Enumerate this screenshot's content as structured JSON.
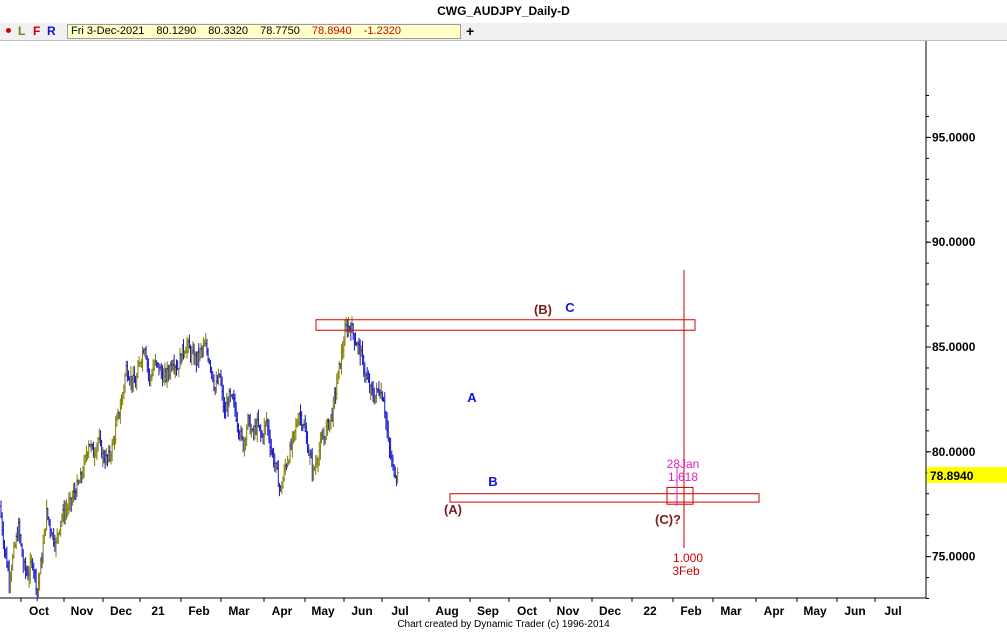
{
  "window": {
    "title": "CWG_AUDJPY_Daily-D"
  },
  "toolbar": {
    "l_label": "L",
    "f_label": "F",
    "r_label": "R",
    "plus_label": "+"
  },
  "quote": {
    "date": "Fri 3-Dec-2021",
    "open": "80.1290",
    "high": "80.3320",
    "low": "78.7750",
    "close": "78.8940",
    "change": "-1.2320"
  },
  "footer": {
    "credit": "Chart created by Dynamic Trader  (c) 1996-2014"
  },
  "colors": {
    "up_bar": "#7d7d00",
    "down_bar": "#1414c8",
    "zone": "#d00000",
    "time_line": "#d00000",
    "wave_major": "#7b1c1c",
    "wave_minor": "#1414dc",
    "fib": "#e020c0",
    "last_price_bg": "#ffff00"
  },
  "chart_data": {
    "type": "ohlc",
    "instrument": "AUDJPY",
    "timeframe": "Daily",
    "ylim": [
      73.0,
      98.0
    ],
    "y_ticks": [
      "95.0000",
      "90.0000",
      "85.0000",
      "80.0000",
      "75.0000"
    ],
    "x_ticks": [
      "Oct",
      "Nov",
      "Dec",
      "21",
      "Feb",
      "Mar",
      "Apr",
      "May",
      "Jun",
      "Jul",
      "Aug",
      "Sep",
      "Oct",
      "Nov",
      "Dec",
      "22",
      "Feb",
      "Mar",
      "Apr",
      "May",
      "Jun",
      "Jul"
    ],
    "last_price": "78.8940",
    "price_path": [
      [
        0,
        77.4
      ],
      [
        1,
        75.4
      ],
      [
        2,
        74.0
      ],
      [
        3,
        75.2
      ],
      [
        4,
        76.4
      ],
      [
        5,
        74.6
      ],
      [
        6,
        74.1
      ],
      [
        7,
        74.8
      ],
      [
        8,
        73.4
      ],
      [
        9,
        75.0
      ],
      [
        10,
        77.1
      ],
      [
        11,
        76.2
      ],
      [
        12,
        75.6
      ],
      [
        13,
        76.8
      ],
      [
        14,
        77.2
      ],
      [
        15,
        77.5
      ],
      [
        16,
        78.1
      ],
      [
        17,
        78.5
      ],
      [
        18,
        79.3
      ],
      [
        19,
        80.5
      ],
      [
        20,
        79.9
      ],
      [
        21,
        80.6
      ],
      [
        22,
        79.8
      ],
      [
        23,
        79.6
      ],
      [
        24,
        80.2
      ],
      [
        25,
        81.4
      ],
      [
        26,
        82.4
      ],
      [
        27,
        84.0
      ],
      [
        28,
        83.5
      ],
      [
        29,
        83.2
      ],
      [
        30,
        84.4
      ],
      [
        31,
        85.1
      ],
      [
        32,
        83.4
      ],
      [
        33,
        84.2
      ],
      [
        34,
        84.0
      ],
      [
        35,
        83.5
      ],
      [
        36,
        83.8
      ],
      [
        37,
        84.4
      ],
      [
        38,
        84.0
      ],
      [
        39,
        84.8
      ],
      [
        40,
        85.1
      ],
      [
        41,
        84.6
      ],
      [
        42,
        84.4
      ],
      [
        43,
        84.8
      ],
      [
        44,
        85.0
      ],
      [
        45,
        84.2
      ],
      [
        46,
        83.0
      ],
      [
        47,
        83.6
      ],
      [
        48,
        81.8
      ],
      [
        49,
        82.6
      ],
      [
        50,
        82.3
      ],
      [
        51,
        81.2
      ],
      [
        52,
        80.3
      ],
      [
        53,
        81.5
      ],
      [
        54,
        80.8
      ],
      [
        55,
        81.3
      ],
      [
        56,
        80.7
      ],
      [
        57,
        81.5
      ],
      [
        58,
        80.1
      ],
      [
        59,
        79.2
      ],
      [
        60,
        78.1
      ],
      [
        61,
        79.3
      ],
      [
        62,
        80.0
      ],
      [
        63,
        80.9
      ],
      [
        64,
        81.9
      ],
      [
        65,
        81.2
      ],
      [
        66,
        80.0
      ],
      [
        67,
        79.0
      ],
      [
        68,
        79.9
      ],
      [
        69,
        80.6
      ],
      [
        70,
        81.2
      ],
      [
        71,
        81.8
      ],
      [
        72,
        83.3
      ],
      [
        73,
        84.6
      ],
      [
        74,
        85.9
      ],
      [
        75,
        86.0
      ],
      [
        76,
        85.3
      ],
      [
        77,
        84.8
      ],
      [
        78,
        83.8
      ],
      [
        79,
        83.0
      ],
      [
        80,
        82.6
      ],
      [
        81,
        83.0
      ],
      [
        82,
        82.6
      ],
      [
        83,
        80.4
      ],
      [
        84,
        79.2
      ],
      [
        85,
        78.9
      ]
    ],
    "zones": [
      {
        "from_bar": 45,
        "to_bar": 156,
        "low": 85.8,
        "high": 86.3
      },
      {
        "from_bar": 65,
        "to_bar": 156,
        "low": 77.6,
        "high": 78.0
      }
    ],
    "time_zone": {
      "from_date": "28Jan",
      "to_date": "3Feb",
      "low": 77.5,
      "high": 78.3
    },
    "vertical_line": {
      "label_top": "28Jan",
      "label_top2": "1.618",
      "label_bottom": "1.000",
      "label_bottom2": "3Feb"
    },
    "wave_labels": [
      {
        "text": "(A)",
        "kind": "major",
        "bar": 65,
        "price": 77.0
      },
      {
        "text": "(B)",
        "kind": "major",
        "bar": 78,
        "price": 87.1
      },
      {
        "text": "C",
        "kind": "minor",
        "bar": 82,
        "price": 87.2
      },
      {
        "text": "A",
        "kind": "minor",
        "bar": 68,
        "price": 82.5
      },
      {
        "text": "B",
        "kind": "minor",
        "bar": 71,
        "price": 78.3
      },
      {
        "text": "(C)?",
        "kind": "major",
        "bar": 96,
        "price": 76.6
      }
    ]
  }
}
